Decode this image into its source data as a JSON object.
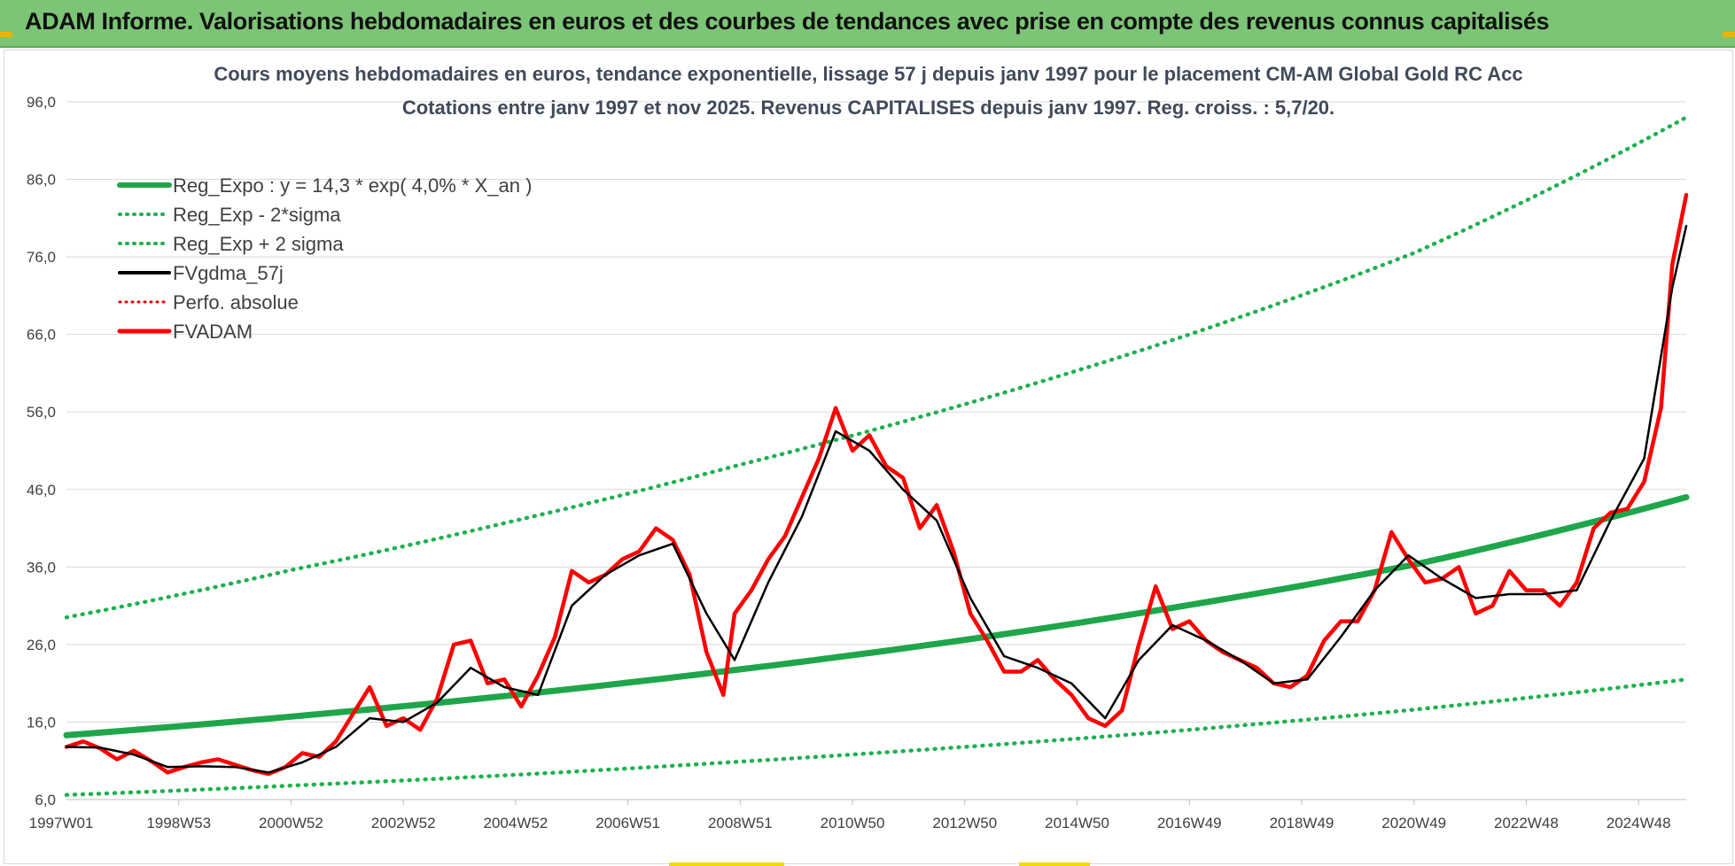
{
  "banner": {
    "title": "ADAM Informe. Valorisations hebdomadaires en euros et des courbes de tendances avec prise en compte des revenus connus capitalisés"
  },
  "colors": {
    "banner_bg": "#7cc576",
    "regression": "#1fa64a",
    "sigma_bands": "#1fb050",
    "smoothed": "#000000",
    "perfo": "#e00000",
    "fvadam": "#ff0000"
  },
  "chart_data": {
    "type": "line",
    "title": "Cours moyens hebdomadaires en euros, tendance exponentielle, lissage 57 j depuis janv 1997 pour le placement CM-AM Global Gold RC Acc",
    "subtitle": "Cotations entre janv 1997 et nov 2025. Revenus CAPITALISES depuis janv 1997. Reg. croiss. : 5,7/20.",
    "x_ticks": [
      "1997W01",
      "1998W53",
      "2000W52",
      "2002W52",
      "2004W52",
      "2006W51",
      "2008W51",
      "2010W50",
      "2012W50",
      "2014W50",
      "2016W49",
      "2018W49",
      "2020W49",
      "2022W48",
      "2024W48"
    ],
    "x_range": [
      1997.0,
      2025.85
    ],
    "ylim": [
      6.0,
      96.0
    ],
    "y_ticks": [
      "6,0",
      "16,0",
      "26,0",
      "36,0",
      "46,0",
      "56,0",
      "66,0",
      "76,0",
      "86,0",
      "96,0"
    ],
    "legend_position": "top-left",
    "legend": [
      {
        "label": "Reg_Expo : y = 14,3 * exp( 4,0% *  X_an )",
        "style": "solid-green-thick"
      },
      {
        "label": "Reg_Exp - 2*sigma",
        "style": "dotted-green"
      },
      {
        "label": "Reg_Exp + 2 sigma",
        "style": "dotted-green"
      },
      {
        "label": "FVgdma_57j",
        "style": "solid-black"
      },
      {
        "label": "Perfo. absolue",
        "style": "dotted-red"
      },
      {
        "label": "FVADAM",
        "style": "solid-red-thick"
      }
    ],
    "series": [
      {
        "name": "Reg_Expo : y = 14,3 * exp( 4,0% *  X_an )",
        "x": [
          1997.0,
          2001.0,
          2005.0,
          2009.0,
          2013.0,
          2017.0,
          2021.0,
          2025.85
        ],
        "values": [
          14.3,
          16.7,
          19.5,
          22.8,
          26.6,
          31.1,
          36.3,
          45.0
        ]
      },
      {
        "name": "Reg_Exp - 2*sigma",
        "x": [
          1997.0,
          2001.0,
          2005.0,
          2009.0,
          2013.0,
          2017.0,
          2021.0,
          2025.85
        ],
        "values": [
          6.6,
          7.8,
          9.2,
          10.9,
          12.8,
          15.0,
          17.6,
          21.5
        ]
      },
      {
        "name": "Reg_Exp + 2 sigma",
        "x": [
          1997.0,
          2001.0,
          2005.0,
          2009.0,
          2013.0,
          2017.0,
          2021.0,
          2025.85
        ],
        "values": [
          29.5,
          35.6,
          42.0,
          49.2,
          57.0,
          66.0,
          76.5,
          94.0
        ]
      },
      {
        "name": "FVADAM",
        "x": [
          1997.0,
          1997.3,
          1997.6,
          1997.9,
          1998.2,
          1998.5,
          1998.8,
          1999.1,
          1999.4,
          1999.7,
          2000.0,
          2000.3,
          2000.6,
          2000.9,
          2001.2,
          2001.5,
          2001.8,
          2002.1,
          2002.4,
          2002.7,
          2003.0,
          2003.3,
          2003.6,
          2003.9,
          2004.2,
          2004.5,
          2004.8,
          2005.1,
          2005.4,
          2005.7,
          2006.0,
          2006.3,
          2006.6,
          2006.9,
          2007.2,
          2007.5,
          2007.8,
          2008.1,
          2008.4,
          2008.7,
          2008.9,
          2009.2,
          2009.5,
          2009.8,
          2010.1,
          2010.4,
          2010.7,
          2011.0,
          2011.3,
          2011.6,
          2011.9,
          2012.2,
          2012.5,
          2012.8,
          2013.1,
          2013.4,
          2013.7,
          2014.0,
          2014.3,
          2014.6,
          2014.9,
          2015.2,
          2015.5,
          2015.8,
          2016.1,
          2016.4,
          2016.7,
          2017.0,
          2017.3,
          2017.6,
          2017.9,
          2018.2,
          2018.5,
          2018.8,
          2019.1,
          2019.4,
          2019.7,
          2020.0,
          2020.3,
          2020.6,
          2020.9,
          2021.2,
          2021.5,
          2021.8,
          2022.1,
          2022.4,
          2022.7,
          2023.0,
          2023.3,
          2023.6,
          2023.9,
          2024.2,
          2024.5,
          2024.8,
          2025.1,
          2025.4,
          2025.6,
          2025.85
        ],
        "values": [
          12.8,
          13.5,
          12.6,
          11.2,
          12.3,
          11.0,
          9.5,
          10.2,
          10.8,
          11.2,
          10.5,
          9.8,
          9.3,
          10.2,
          12.0,
          11.5,
          13.5,
          17.0,
          20.5,
          15.5,
          16.5,
          15.0,
          19.0,
          26.0,
          26.5,
          21.0,
          21.5,
          18.0,
          22.0,
          27.0,
          35.5,
          34.0,
          35.0,
          37.0,
          38.0,
          41.0,
          39.5,
          35.0,
          25.0,
          19.5,
          30.0,
          33.0,
          37.0,
          40.0,
          45.0,
          50.0,
          56.5,
          51.0,
          53.0,
          49.0,
          47.5,
          41.0,
          44.0,
          38.0,
          30.0,
          26.5,
          22.5,
          22.5,
          24.0,
          21.5,
          19.5,
          16.5,
          15.5,
          17.5,
          26.0,
          33.5,
          28.0,
          29.0,
          26.5,
          25.0,
          24.0,
          23.0,
          21.0,
          20.5,
          22.0,
          26.5,
          29.0,
          29.0,
          33.0,
          40.5,
          37.0,
          34.0,
          34.5,
          36.0,
          30.0,
          31.0,
          35.5,
          33.0,
          33.0,
          31.0,
          34.0,
          41.0,
          43.0,
          43.5,
          47.0,
          56.5,
          75.0,
          84.0
        ]
      },
      {
        "name": "FVgdma_57j",
        "x": [
          1997.0,
          1997.6,
          1998.2,
          1998.8,
          1999.4,
          2000.0,
          2000.6,
          2001.2,
          2001.8,
          2002.4,
          2003.0,
          2003.6,
          2004.2,
          2004.8,
          2005.4,
          2006.0,
          2006.6,
          2007.2,
          2007.8,
          2008.4,
          2008.9,
          2009.5,
          2010.1,
          2010.7,
          2011.3,
          2011.9,
          2012.5,
          2013.1,
          2013.7,
          2014.3,
          2014.9,
          2015.5,
          2016.1,
          2016.7,
          2017.3,
          2017.9,
          2018.5,
          2019.1,
          2019.7,
          2020.3,
          2020.9,
          2021.5,
          2022.1,
          2022.7,
          2023.3,
          2023.9,
          2024.5,
          2025.1,
          2025.6,
          2025.85
        ],
        "values": [
          12.8,
          12.7,
          11.8,
          10.2,
          10.3,
          10.2,
          9.5,
          10.8,
          12.8,
          16.5,
          16.0,
          18.5,
          23.0,
          20.5,
          19.5,
          31.0,
          35.0,
          37.5,
          39.0,
          30.0,
          24.0,
          34.0,
          42.5,
          53.5,
          51.0,
          46.0,
          42.0,
          32.0,
          24.5,
          23.0,
          21.0,
          16.5,
          24.0,
          28.5,
          26.5,
          24.0,
          21.0,
          21.5,
          27.0,
          33.0,
          37.5,
          34.5,
          32.0,
          32.5,
          32.5,
          33.0,
          42.0,
          50.0,
          72.0,
          80.0
        ]
      }
    ]
  }
}
